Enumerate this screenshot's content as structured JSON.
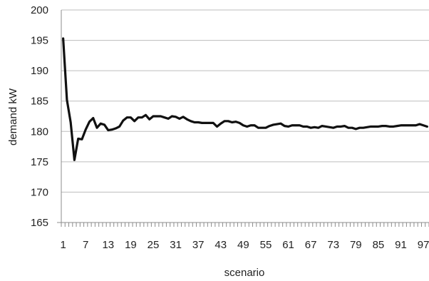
{
  "chart_data": {
    "type": "line",
    "title": "",
    "xlabel": "scenario",
    "ylabel": "demand kW",
    "ylim": [
      165,
      200
    ],
    "xlim": [
      1,
      98
    ],
    "y_ticks": [
      "165",
      "170",
      "175",
      "180",
      "185",
      "190",
      "195",
      "200"
    ],
    "x_ticks": [
      "1",
      "7",
      "13",
      "19",
      "25",
      "31",
      "37",
      "43",
      "49",
      "55",
      "61",
      "67",
      "73",
      "79",
      "85",
      "91",
      "97"
    ],
    "grid": "horizontal",
    "legend": "none",
    "colors": {
      "line": "#111111",
      "grid": "#bdbdbd",
      "axis": "#8c8c8c"
    },
    "series": [
      {
        "x": [
          1,
          2,
          3,
          4,
          5,
          6,
          7,
          8,
          9,
          10,
          11,
          12,
          13,
          14,
          15,
          16,
          17,
          18,
          19,
          20,
          21,
          22,
          23,
          24,
          25,
          26,
          27,
          28,
          29,
          30,
          31,
          32,
          33,
          34,
          35,
          36,
          37,
          38,
          39,
          40,
          41,
          42,
          43,
          44,
          45,
          46,
          47,
          48,
          49,
          50,
          51,
          52,
          53,
          54,
          55,
          56,
          57,
          58,
          59,
          60,
          61,
          62,
          63,
          64,
          65,
          66,
          67,
          68,
          69,
          70,
          71,
          72,
          73,
          74,
          75,
          76,
          77,
          78,
          79,
          80,
          81,
          82,
          83,
          84,
          85,
          86,
          87,
          88,
          89,
          90,
          91,
          92,
          93,
          94,
          95,
          96,
          97,
          98
        ],
        "values": [
          195.3,
          185.2,
          181.5,
          175.3,
          178.8,
          178.7,
          180.3,
          181.6,
          182.2,
          180.6,
          181.3,
          181.1,
          180.2,
          180.3,
          180.5,
          180.8,
          181.8,
          182.3,
          182.3,
          181.7,
          182.3,
          182.3,
          182.7,
          182.0,
          182.5,
          182.5,
          182.5,
          182.3,
          182.1,
          182.5,
          182.4,
          182.1,
          182.4,
          182.0,
          181.7,
          181.5,
          181.5,
          181.4,
          181.4,
          181.4,
          181.4,
          180.8,
          181.3,
          181.7,
          181.7,
          181.5,
          181.6,
          181.4,
          181.0,
          180.8,
          181.0,
          181.0,
          180.6,
          180.6,
          180.6,
          180.9,
          181.1,
          181.2,
          181.3,
          180.9,
          180.8,
          181.0,
          181.0,
          181.0,
          180.8,
          180.8,
          180.6,
          180.7,
          180.6,
          180.9,
          180.8,
          180.7,
          180.6,
          180.8,
          180.8,
          180.9,
          180.6,
          180.6,
          180.4,
          180.6,
          180.6,
          180.7,
          180.8,
          180.8,
          180.8,
          180.9,
          180.9,
          180.8,
          180.8,
          180.9,
          181.0,
          181.0,
          181.0,
          181.0,
          181.0,
          181.2,
          181.0,
          180.8
        ]
      }
    ]
  }
}
